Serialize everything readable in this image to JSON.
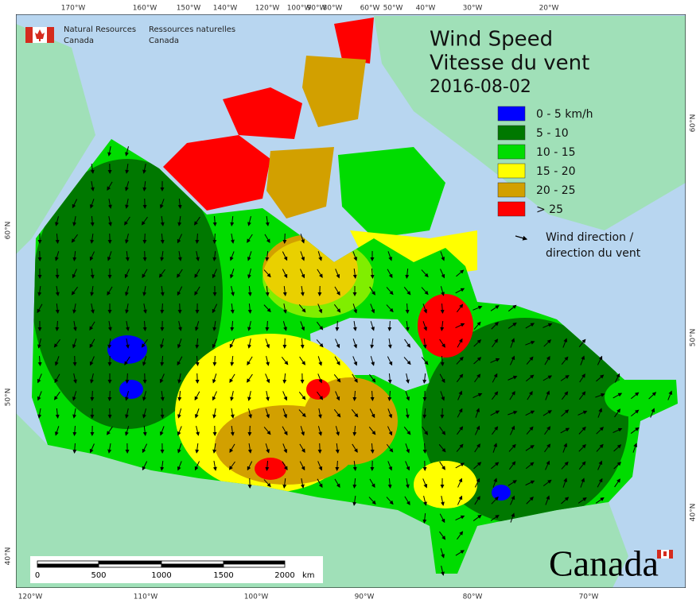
{
  "header": {
    "agency_en": [
      "Natural Resources",
      "Canada"
    ],
    "agency_fr": [
      "Ressources naturelles",
      "Canada"
    ]
  },
  "title": {
    "en": "Wind Speed",
    "fr": "Vitesse du vent",
    "date": "2016-08-02"
  },
  "legend": {
    "items": [
      {
        "label": "0 - 5 km/h",
        "color": "#0000ff"
      },
      {
        "label": "5 - 10",
        "color": "#007800"
      },
      {
        "label": "10 - 15",
        "color": "#00dc00"
      },
      {
        "label": "15 - 20",
        "color": "#ffff00"
      },
      {
        "label": "20 - 25",
        "color": "#d2a000"
      },
      {
        "label": "> 25",
        "color": "#ff0000"
      }
    ],
    "direction": [
      "Wind direction /",
      "direction du vent"
    ]
  },
  "graticule": {
    "top": [
      "170°W",
      "160°W",
      "150°W",
      "140°W",
      "120°W",
      "100°W",
      "90°W",
      "80°W",
      "60°W",
      "50°W",
      "40°W",
      "30°W",
      "20°W"
    ],
    "bottom": [
      "120°W",
      "110°W",
      "100°W",
      "90°W",
      "80°W",
      "70°W"
    ],
    "left": [
      "60°N",
      "50°N",
      "40°N"
    ],
    "right": [
      "60°N",
      "50°N",
      "40°N"
    ]
  },
  "scale_bar": {
    "labels": [
      "0",
      "500",
      "1000",
      "1500",
      "2000"
    ],
    "unit": "km"
  },
  "wordmark": "Canada"
}
